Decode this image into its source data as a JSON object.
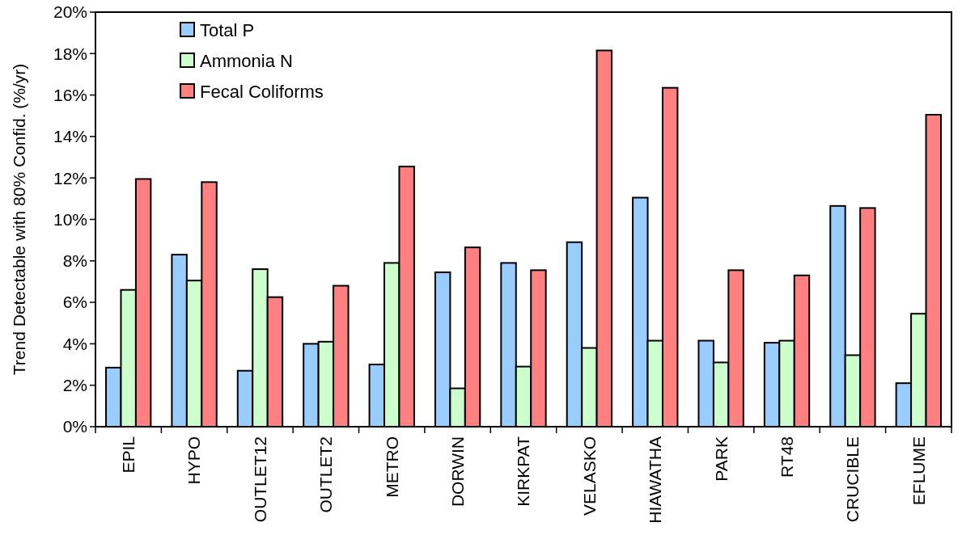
{
  "chart_data": {
    "type": "bar",
    "ylabel": "Trend Detectable with 80% Confid. (%/yr)",
    "categories": [
      "EPIL",
      "HYPO",
      "OUTLET12",
      "OUTLET2",
      "METRO",
      "DORWIN",
      "KIRKPAT",
      "VELASKO",
      "HIAWATHA",
      "PARK",
      "RT48",
      "CRUCIBLE",
      "EFLUME"
    ],
    "series": [
      {
        "name": "Total P",
        "color": "#99ccff",
        "values": [
          2.85,
          8.3,
          2.7,
          4.0,
          3.0,
          7.45,
          7.9,
          8.9,
          11.05,
          4.15,
          4.05,
          10.65,
          2.1
        ]
      },
      {
        "name": "Ammonia N",
        "color": "#ccffcc",
        "values": [
          6.6,
          7.05,
          7.6,
          4.1,
          7.9,
          1.85,
          2.9,
          3.8,
          4.15,
          3.1,
          4.15,
          3.45,
          5.45
        ]
      },
      {
        "name": "Fecal Coliforms",
        "color": "#ff8080",
        "values": [
          11.95,
          11.8,
          6.25,
          6.8,
          12.55,
          8.65,
          7.55,
          18.15,
          16.35,
          7.55,
          7.3,
          10.55,
          15.05
        ]
      }
    ],
    "ylim": [
      0,
      20
    ],
    "yticks": [
      {
        "value": 0,
        "label": "0%"
      },
      {
        "value": 2,
        "label": "2%"
      },
      {
        "value": 4,
        "label": "4%"
      },
      {
        "value": 6,
        "label": "6%"
      },
      {
        "value": 8,
        "label": "8%"
      },
      {
        "value": 10,
        "label": "10%"
      },
      {
        "value": 12,
        "label": "12%"
      },
      {
        "value": 14,
        "label": "14%"
      },
      {
        "value": 16,
        "label": "16%"
      },
      {
        "value": 18,
        "label": "18%"
      },
      {
        "value": 20,
        "label": "20%"
      }
    ],
    "grid": false,
    "legend": "top left"
  }
}
